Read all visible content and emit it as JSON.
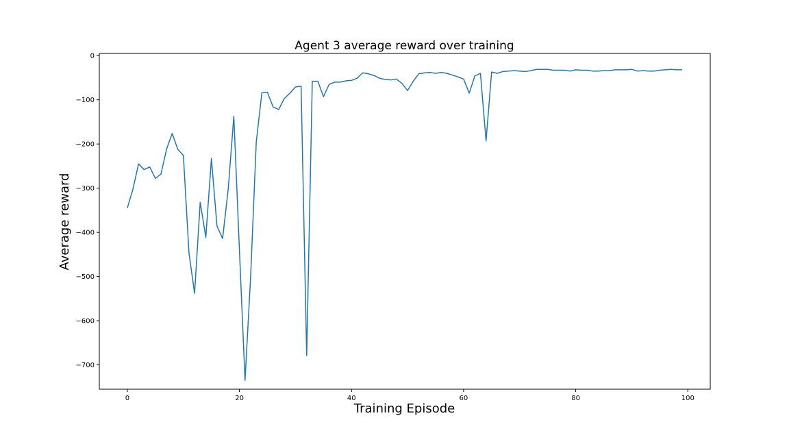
{
  "chart_data": {
    "type": "line",
    "title": "Agent 3 average reward over training",
    "xlabel": "Training Episode",
    "ylabel": "Average reward",
    "xlim": [
      -5,
      104
    ],
    "ylim": [
      -755,
      5
    ],
    "xticks": [
      0,
      20,
      40,
      60,
      80,
      100
    ],
    "yticks": [
      0,
      -100,
      -200,
      -300,
      -400,
      -500,
      -600,
      -700
    ],
    "grid": false,
    "legend": "none",
    "series": [
      {
        "color": "#1f77b4",
        "x": [
          0,
          1,
          2,
          3,
          4,
          5,
          6,
          7,
          8,
          9,
          10,
          11,
          12,
          13,
          14,
          15,
          16,
          17,
          18,
          19,
          20,
          21,
          22,
          23,
          24,
          25,
          26,
          27,
          28,
          29,
          30,
          31,
          32,
          33,
          34,
          35,
          36,
          37,
          38,
          39,
          40,
          41,
          42,
          43,
          44,
          45,
          46,
          47,
          48,
          49,
          50,
          51,
          52,
          53,
          54,
          55,
          56,
          57,
          58,
          59,
          60,
          61,
          62,
          63,
          64,
          65,
          66,
          67,
          68,
          69,
          70,
          71,
          72,
          73,
          74,
          75,
          76,
          77,
          78,
          79,
          80,
          81,
          82,
          83,
          84,
          85,
          86,
          87,
          88,
          89,
          90,
          91,
          92,
          93,
          94,
          95,
          96,
          97,
          98,
          99
        ],
        "values": [
          -345,
          -302,
          -245,
          -258,
          -252,
          -278,
          -268,
          -212,
          -176,
          -212,
          -226,
          -447,
          -538,
          -332,
          -411,
          -233,
          -386,
          -414,
          -302,
          -137,
          -440,
          -735,
          -500,
          -196,
          -84,
          -83,
          -116,
          -122,
          -97,
          -85,
          -71,
          -69,
          -679,
          -58,
          -58,
          -93,
          -65,
          -60,
          -60,
          -57,
          -56,
          -51,
          -39,
          -41,
          -45,
          -51,
          -54,
          -55,
          -53,
          -63,
          -79,
          -58,
          -41,
          -39,
          -38,
          -40,
          -38,
          -40,
          -44,
          -48,
          -53,
          -85,
          -46,
          -40,
          -193,
          -37,
          -40,
          -36,
          -35,
          -34,
          -35,
          -36,
          -34,
          -31,
          -31,
          -31,
          -33,
          -33,
          -33,
          -35,
          -32,
          -33,
          -33,
          -35,
          -35,
          -34,
          -34,
          -32,
          -32,
          -32,
          -31,
          -35,
          -34,
          -35,
          -35,
          -33,
          -32,
          -31,
          -32,
          -32
        ]
      }
    ]
  }
}
